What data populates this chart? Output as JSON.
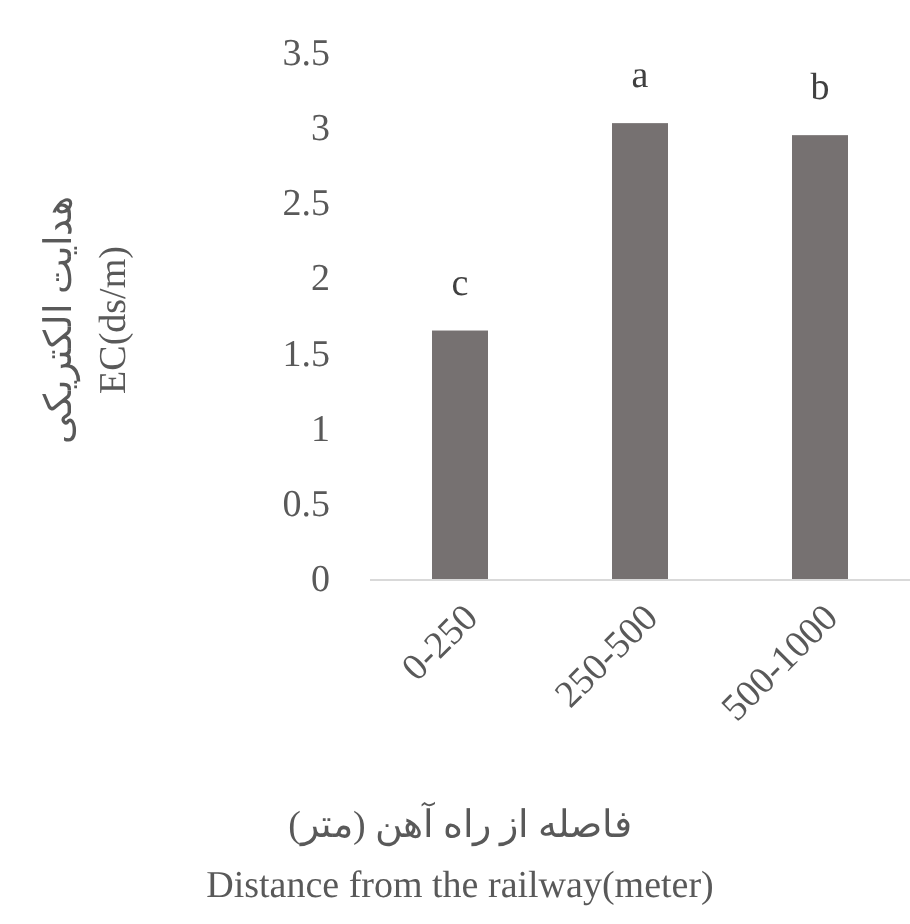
{
  "chart_data": {
    "type": "bar",
    "categories": [
      "0-250",
      "250-500",
      "500-1000"
    ],
    "values": [
      1.66,
      3.04,
      2.96
    ],
    "color": "#767171",
    "ylim": [
      0,
      3.5
    ],
    "yticks": [
      0,
      {
        "value": 0.5,
        "label": "0.5"
      },
      1,
      {
        "value": 1.5,
        "label": "1.5"
      },
      2,
      {
        "value": 2.5,
        "label": "2.5"
      },
      3,
      {
        "value": 3.5,
        "label": "3.5"
      }
    ],
    "xlabel": "فاصله از راه آهن (متر)\nDistance from the railway(meter)",
    "ylabel": "هدایت الکتریکی\nEC(ds/m)",
    "annotations": [
      {
        "text": "c",
        "x": "0-250",
        "y": 1.66
      },
      {
        "text": "a",
        "x": "250-500",
        "y": 3.04
      },
      {
        "text": "b",
        "x": "500-1000",
        "y": 2.96
      }
    ]
  }
}
